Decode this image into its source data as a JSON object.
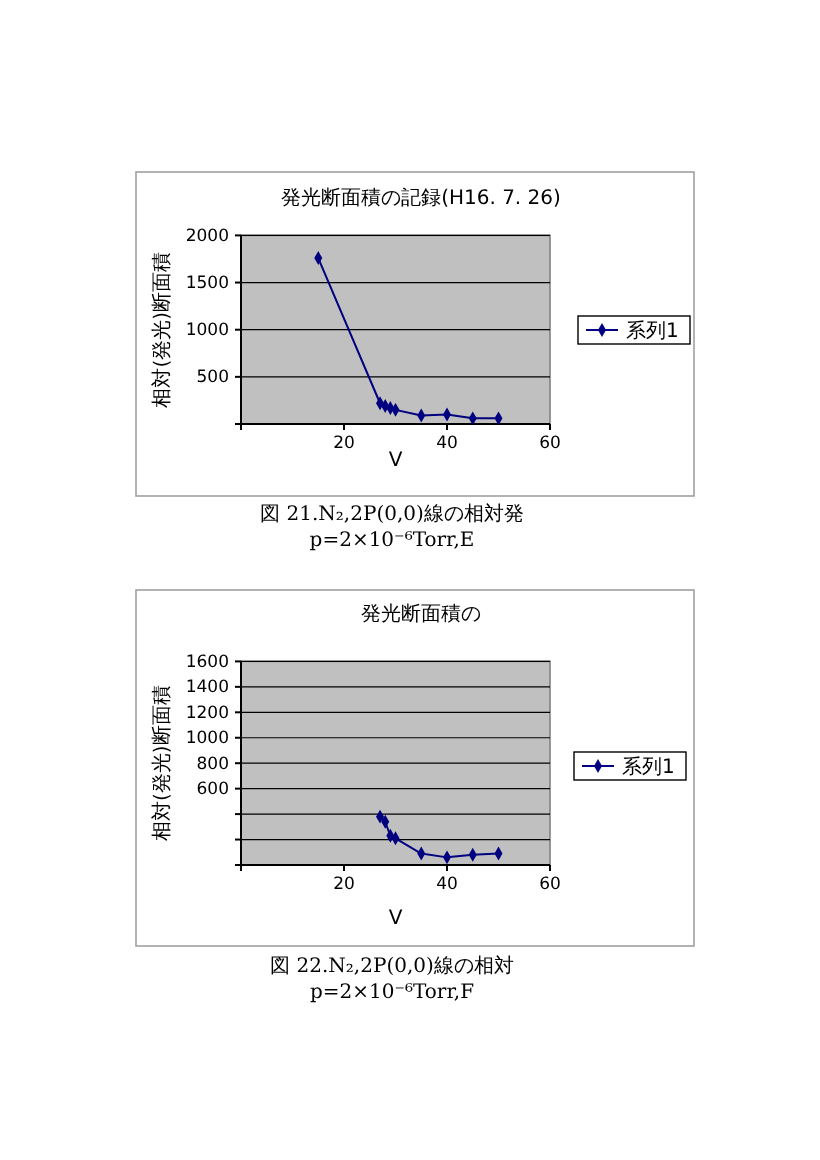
{
  "chart_data": [
    {
      "type": "line",
      "title": "発光断面積の記録(H16. 7. 26)",
      "xlabel": "V",
      "ylabel": "相対(発光)断面積",
      "x": [
        15,
        27,
        28,
        29,
        30,
        35,
        40,
        45,
        50
      ],
      "series": [
        {
          "name": "系列1",
          "color": "#000080",
          "values": [
            1760,
            220,
            190,
            170,
            150,
            90,
            100,
            60,
            60
          ]
        }
      ],
      "xlim": [
        0,
        60
      ],
      "xticks": [
        {
          "value": 0,
          "label": null
        },
        20,
        40,
        60
      ],
      "ylim": [
        0,
        2000
      ],
      "yticks": [
        {
          "value": 0,
          "label": null
        },
        500,
        1000,
        1500,
        2000
      ],
      "grid": "y",
      "legend": "right",
      "marker": "diamond",
      "annotations": [
        "図 21.N₂,2P(0,0)線の相対発",
        "p=2×10⁻⁶Torr,E"
      ]
    },
    {
      "type": "line",
      "title": "発光断面積の",
      "xlabel": "V",
      "ylabel": "相対(発光)断面積",
      "x": [
        27,
        28,
        29,
        30,
        35,
        40,
        45,
        50
      ],
      "series": [
        {
          "name": "系列1",
          "color": "#000080",
          "values": [
            380,
            340,
            230,
            210,
            90,
            60,
            80,
            90
          ]
        }
      ],
      "xlim": [
        0,
        60
      ],
      "xticks": [
        {
          "value": 0,
          "label": null
        },
        20,
        40,
        60
      ],
      "ylim": [
        0,
        1600
      ],
      "yticks": [
        {
          "value": 0,
          "label": null
        },
        {
          "value": 200,
          "label": null
        },
        {
          "value": 400,
          "label": null
        },
        600,
        800,
        1000,
        1200,
        1400,
        1600
      ],
      "grid": "y",
      "legend": "right",
      "marker": "diamond",
      "annotations": [
        "図 22.N₂,2P(0,0)線の相対",
        "p=2×10⁻⁶Torr,F"
      ]
    }
  ]
}
